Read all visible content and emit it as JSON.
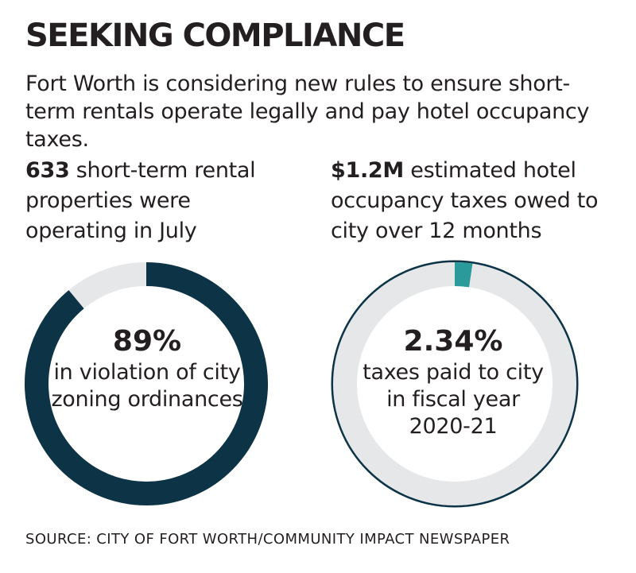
{
  "title": "SEEKING COMPLIANCE",
  "subtitle": "Fort Worth is considering new rules to ensure short-term rentals operate legally and pay hotel occupancy taxes.",
  "stats": [
    {
      "value": "633",
      "text": "short-term rental properties were operating in July"
    },
    {
      "value": "$1.2M",
      "text": "estimated hotel occupancy taxes owed to city over 12 months"
    }
  ],
  "source": "SOURCE: CITY OF FORT WORTH/COMMUNITY IMPACT NEWSPAPER",
  "colors": {
    "dark": "#0c3446",
    "teal": "#2a9a9b",
    "track": "#e6e7e8"
  },
  "chart_data": [
    {
      "type": "pie",
      "label": "89%",
      "value": 89,
      "description": "in violation of city zoning ordinances"
    },
    {
      "type": "pie",
      "label": "2.34%",
      "value": 2.34,
      "description": "taxes paid to city in fiscal year 2020-21"
    }
  ]
}
